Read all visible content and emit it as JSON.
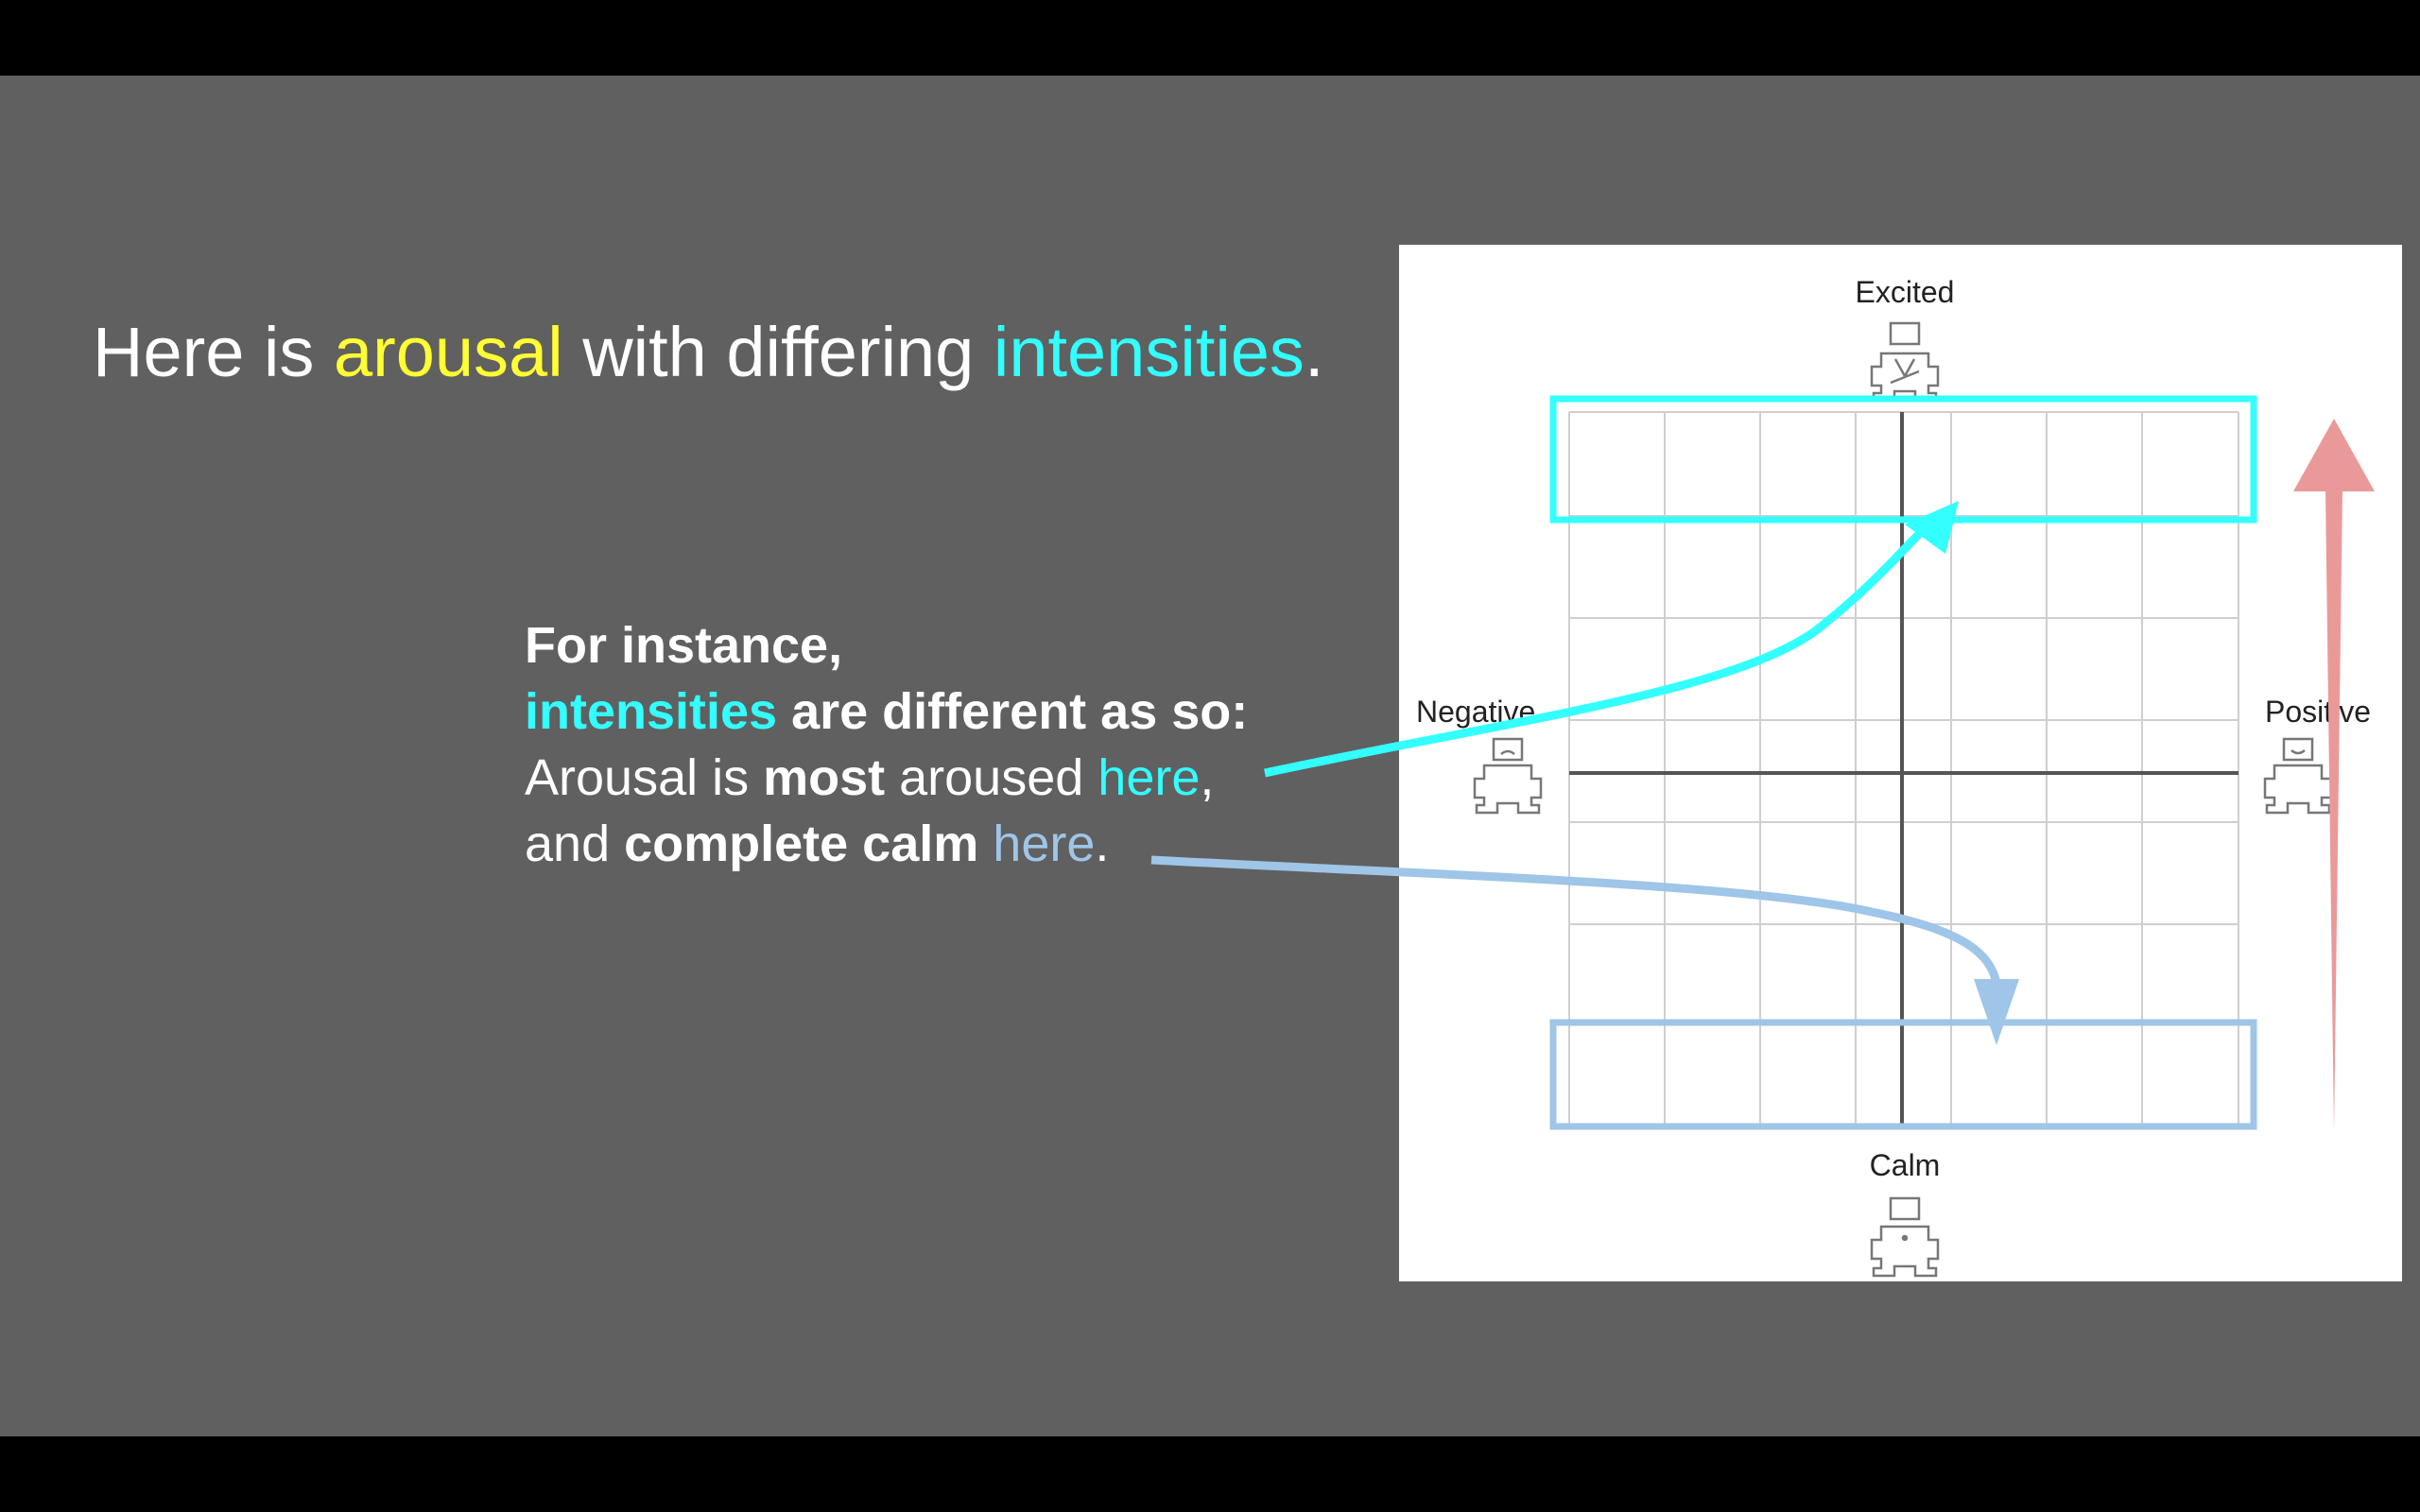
{
  "title": {
    "part1": "Here is ",
    "arousal": "arousal",
    "part2": " with differing ",
    "intensities": "intensities",
    "part3": "."
  },
  "body": {
    "line1": "For instance,",
    "line2_hl": "intensities",
    "line2_rest": " are different as so:",
    "line3_a": "Arousal is ",
    "line3_b": "most",
    "line3_c": " aroused ",
    "line3_here": "here",
    "line3_d": ",",
    "line4_a": "and ",
    "line4_b": "complete calm",
    "line4_c": " ",
    "line4_here": "here",
    "line4_d": "."
  },
  "grid": {
    "label_top": "Excited",
    "label_bottom": "Calm",
    "label_left": "Negative",
    "label_right": "Positive"
  },
  "colors": {
    "background": "#606060",
    "arousal": "#ffff33",
    "intensity": "#33ffff",
    "calm": "#9fc5e8",
    "arrow_red": "#ea9999"
  }
}
